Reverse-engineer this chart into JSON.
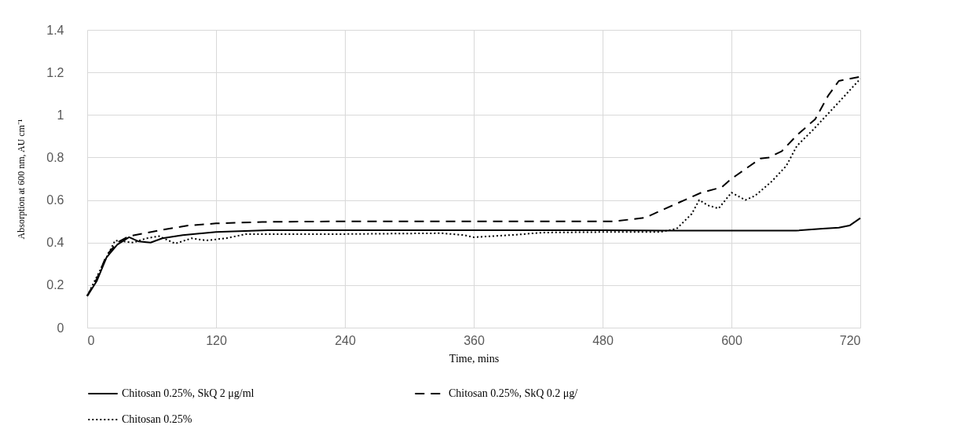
{
  "chart_data": {
    "type": "line",
    "xlabel": "Time, mins",
    "ylabel": "Absorption at 600 nm, AU cm⁻¹",
    "xlim": [
      0,
      720
    ],
    "xticks": [
      0,
      120,
      240,
      360,
      480,
      600,
      720
    ],
    "ylim": [
      0,
      1.4
    ],
    "yticks": [
      0,
      0.2,
      0.4,
      0.6,
      0.8,
      1,
      1.2,
      1.4
    ],
    "grid": true,
    "legend": "bottom",
    "series": [
      {
        "name": "Chitosan 0.25%, SkQ 2 μg/ml",
        "color": "#000000",
        "line_style": "solid",
        "x": [
          0,
          9,
          18,
          28,
          39,
          48,
          59,
          70,
          89,
          120,
          168,
          240,
          300,
          360,
          420,
          480,
          540,
          600,
          660,
          685,
          700,
          710,
          720
        ],
        "values": [
          0.148,
          0.22,
          0.33,
          0.39,
          0.425,
          0.405,
          0.4,
          0.42,
          0.435,
          0.45,
          0.458,
          0.458,
          0.458,
          0.458,
          0.458,
          0.458,
          0.456,
          0.456,
          0.456,
          0.465,
          0.47,
          0.48,
          0.515
        ]
      },
      {
        "name": "Chitosan 0.25%, SkQ 0.2 μg/",
        "color": "#000000",
        "line_style": "dashed",
        "x": [
          0,
          9,
          18,
          28,
          39,
          55,
          70,
          94,
          120,
          163,
          240,
          360,
          491,
          520,
          534,
          552,
          572,
          591,
          600,
          627,
          635,
          647,
          661,
          678,
          690,
          700,
          720
        ],
        "values": [
          0.15,
          0.23,
          0.34,
          0.4,
          0.43,
          0.445,
          0.46,
          0.48,
          0.49,
          0.497,
          0.5,
          0.5,
          0.5,
          0.517,
          0.55,
          0.59,
          0.635,
          0.66,
          0.7,
          0.795,
          0.8,
          0.83,
          0.905,
          0.98,
          1.09,
          1.16,
          1.18
        ]
      },
      {
        "name": "Chitosan 0.25%",
        "color": "#000000",
        "line_style": "dotted",
        "x": [
          0,
          16,
          26,
          34,
          43,
          55,
          67,
          82,
          97,
          111,
          129,
          148,
          240,
          330,
          351,
          360,
          400,
          424,
          491,
          534,
          549,
          563,
          570,
          578,
          588,
          600,
          613,
          622,
          637,
          651,
          661,
          676,
          700,
          720
        ],
        "values": [
          0.15,
          0.31,
          0.41,
          0.405,
          0.4,
          0.42,
          0.43,
          0.395,
          0.42,
          0.41,
          0.42,
          0.44,
          0.44,
          0.444,
          0.435,
          0.425,
          0.437,
          0.447,
          0.45,
          0.45,
          0.465,
          0.535,
          0.6,
          0.575,
          0.56,
          0.635,
          0.6,
          0.62,
          0.685,
          0.76,
          0.855,
          0.93,
          1.06,
          1.17
        ]
      }
    ]
  }
}
